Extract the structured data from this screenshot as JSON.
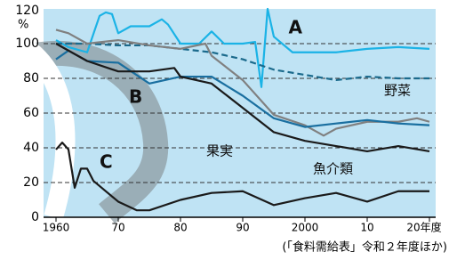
{
  "chart_data": {
    "type": "line",
    "y_unit": "%",
    "source": "(「食料需給表」令和２年度ほか)",
    "xlim": [
      1958,
      2021
    ],
    "ylim": [
      0,
      120
    ],
    "xticks": [
      1960,
      {
        "value": 1970,
        "label": "70"
      },
      {
        "value": 1980,
        "label": "80"
      },
      {
        "value": 1990,
        "label": "90"
      },
      2000,
      {
        "value": 2010,
        "label": "10"
      },
      {
        "value": 2020,
        "label": "20年度"
      }
    ],
    "yticks": [
      0,
      20,
      40,
      60,
      80,
      100,
      120
    ],
    "grid": true,
    "series": [
      {
        "name": "A",
        "color": "#1bb3e6",
        "dashed": false,
        "x": [
          1960,
          1962,
          1965,
          1967,
          1968,
          1969,
          1970,
          1972,
          1975,
          1977,
          1978,
          1980,
          1983,
          1985,
          1987,
          1990,
          1992,
          1993,
          1994,
          1995,
          1998,
          2000,
          2005,
          2010,
          2015,
          2020
        ],
        "values": [
          102,
          98,
          95,
          116,
          118,
          117,
          106,
          110,
          110,
          114,
          111,
          100,
          100,
          107,
          100,
          100,
          101,
          75,
          120,
          104,
          95,
          95,
          95,
          97,
          98,
          97
        ]
      },
      {
        "name": "野菜",
        "color": "#1b6a8c",
        "dashed": true,
        "x": [
          1960,
          1965,
          1970,
          1975,
          1980,
          1985,
          1990,
          1995,
          2000,
          2005,
          2010,
          2015,
          2020
        ],
        "values": [
          100,
          100,
          99,
          99,
          97,
          95,
          91,
          85,
          82,
          79,
          81,
          80,
          80
        ]
      },
      {
        "name": "魚介類",
        "color": "#808080",
        "dashed": false,
        "x": [
          1960,
          1962,
          1965,
          1970,
          1975,
          1980,
          1984,
          1985,
          1990,
          1995,
          2000,
          2003,
          2005,
          2010,
          2015,
          2018,
          2020
        ],
        "values": [
          108,
          106,
          100,
          102,
          99,
          97,
          100,
          93,
          79,
          59,
          53,
          47,
          51,
          55,
          55,
          57,
          55
        ]
      },
      {
        "name": "B",
        "color": "#1a6fa0",
        "dashed": false,
        "x": [
          1960,
          1962,
          1965,
          1970,
          1975,
          1980,
          1985,
          1990,
          1995,
          2000,
          2005,
          2010,
          2015,
          2020
        ],
        "values": [
          91,
          96,
          90,
          89,
          77,
          81,
          81,
          70,
          57,
          52,
          54,
          56,
          54,
          53
        ]
      },
      {
        "name": "果実",
        "color": "#1a1a1a",
        "dashed": false,
        "x": [
          1960,
          1965,
          1970,
          1975,
          1979,
          1980,
          1985,
          1990,
          1995,
          2000,
          2005,
          2010,
          2015,
          2020
        ],
        "values": [
          100,
          90,
          84,
          84,
          86,
          81,
          77,
          63,
          49,
          44,
          41,
          38,
          41,
          38
        ]
      },
      {
        "name": "C",
        "color": "#1a1a1a",
        "dashed": false,
        "x": [
          1960,
          1961,
          1962,
          1963,
          1964,
          1965,
          1966,
          1970,
          1973,
          1975,
          1980,
          1985,
          1990,
          1995,
          2000,
          2005,
          2010,
          2015,
          2020
        ],
        "values": [
          39,
          43,
          39,
          17,
          28,
          28,
          21,
          9,
          4,
          4,
          10,
          14,
          15,
          7,
          11,
          14,
          9,
          15,
          15
        ]
      }
    ]
  }
}
